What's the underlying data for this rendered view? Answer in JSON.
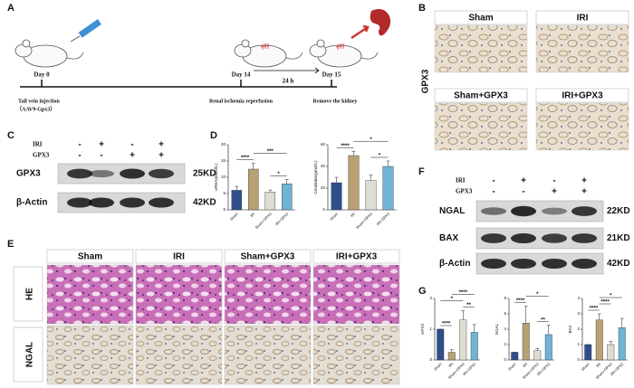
{
  "panel_labels": [
    "A",
    "B",
    "C",
    "D",
    "E",
    "F",
    "G"
  ],
  "timeline": {
    "day0": "Day 0",
    "day14": "Day 14",
    "day15": "Day 15",
    "gap": "24 h",
    "step0": "Tail vein injection",
    "step0_note": "（AAV9-Gpx3）",
    "step14": "Renal ischemia reperfusion",
    "step15": "Remove the kidney"
  },
  "ihc_b": {
    "stain": "GPX3",
    "groups": [
      "Sham",
      "IRI",
      "Sham+GPX3",
      "IRI+GPX3"
    ]
  },
  "blot_c": {
    "conditions": [
      {
        "name": "IRI",
        "signs": [
          "-",
          "+",
          "-",
          "+"
        ]
      },
      {
        "name": "GPX3",
        "signs": [
          "-",
          "-",
          "+",
          "+"
        ]
      }
    ],
    "bands": [
      {
        "name": "GPX3",
        "size": "25KD"
      },
      {
        "name": "β-Actin",
        "size": "42KD"
      }
    ]
  },
  "histology_e": {
    "groups": [
      "Sham",
      "IRI",
      "Sham+GPX3",
      "IRI+GPX3"
    ],
    "stains": [
      "HE",
      "NGAL"
    ]
  },
  "blot_f": {
    "conditions": [
      {
        "name": "IRI",
        "signs": [
          "-",
          "+",
          "-",
          "+"
        ]
      },
      {
        "name": "GPX3",
        "signs": [
          "-",
          "-",
          "+",
          "+"
        ]
      }
    ],
    "bands": [
      {
        "name": "NGAL",
        "size": "22KD"
      },
      {
        "name": "BAX",
        "size": "21KD"
      },
      {
        "name": "β-Actin",
        "size": "42KD"
      }
    ]
  },
  "chart_data": [
    {
      "type": "bar",
      "ylabel": "UREA(mmol/L)",
      "categories": [
        "Sham",
        "IRI",
        "Sham+GPX3",
        "IRI+GPX3"
      ],
      "values": [
        6,
        12.5,
        5.5,
        8
      ],
      "errors": [
        1.2,
        1.8,
        0.6,
        1.3
      ],
      "colors": [
        "#2f4e8c",
        "#b8a173",
        "#deddd3",
        "#6fb4d4"
      ],
      "ylim": [
        0,
        20
      ],
      "yticks": [
        0,
        5,
        10,
        15,
        20
      ],
      "brackets": [
        {
          "label": "****",
          "from": "Sham",
          "to": "IRI"
        },
        {
          "label": "*",
          "from": "Sham+GPX3",
          "to": "IRI+GPX3"
        },
        {
          "label": "***",
          "from": "IRI",
          "to": "IRI+GPX3"
        }
      ]
    },
    {
      "type": "bar",
      "ylabel": "Creatinine(μmol/L)",
      "categories": [
        "Sham",
        "IRI",
        "Sham+GPX3",
        "IRI+GPX3"
      ],
      "values": [
        25,
        50,
        27,
        40
      ],
      "errors": [
        5,
        4,
        5,
        5
      ],
      "colors": [
        "#2f4e8c",
        "#b8a173",
        "#deddd3",
        "#6fb4d4"
      ],
      "ylim": [
        0,
        60
      ],
      "yticks": [
        0,
        20,
        40,
        60
      ],
      "brackets": [
        {
          "label": "****",
          "from": "Sham",
          "to": "IRI"
        },
        {
          "label": "*",
          "from": "Sham+GPX3",
          "to": "IRI+GPX3"
        },
        {
          "label": "*",
          "from": "IRI",
          "to": "IRI+GPX3"
        }
      ]
    },
    {
      "type": "bar",
      "ylabel": "GPX3",
      "categories": [
        "Sham",
        "IRI",
        "Sham+GPX3",
        "IRI+GPX3"
      ],
      "values": [
        1.0,
        0.25,
        1.3,
        0.9
      ],
      "errors": [
        0,
        0.08,
        0.3,
        0.25
      ],
      "colors": [
        "#2f4e8c",
        "#b8a173",
        "#deddd3",
        "#6fb4d4"
      ],
      "ylim": [
        0,
        2
      ],
      "yticks": [
        0,
        1,
        2
      ],
      "brackets": [
        {
          "label": "****",
          "from": "Sham",
          "to": "IRI"
        },
        {
          "label": "**",
          "from": "Sham+GPX3",
          "to": "IRI+GPX3"
        },
        {
          "label": "*",
          "from": "Sham",
          "to": "Sham+GPX3"
        },
        {
          "label": "****",
          "from": "IRI",
          "to": "IRI+GPX3"
        }
      ]
    },
    {
      "type": "bar",
      "ylabel": "NGAL",
      "categories": [
        "Sham",
        "IRI",
        "Sham+GPX3",
        "IRI+GPX3"
      ],
      "values": [
        1,
        4.8,
        1.2,
        3.3
      ],
      "errors": [
        0,
        2.2,
        0.3,
        1.2
      ],
      "colors": [
        "#2f4e8c",
        "#b8a173",
        "#deddd3",
        "#6fb4d4"
      ],
      "ylim": [
        0,
        8
      ],
      "yticks": [
        0,
        2,
        4,
        6,
        8
      ],
      "brackets": [
        {
          "label": "****",
          "from": "Sham",
          "to": "IRI"
        },
        {
          "label": "**",
          "from": "Sham+GPX3",
          "to": "IRI+GPX3"
        },
        {
          "label": "*",
          "from": "IRI",
          "to": "IRI+GPX3"
        }
      ]
    },
    {
      "type": "bar",
      "ylabel": "BAX",
      "categories": [
        "Sham",
        "IRI",
        "Sham+GPX3",
        "IRI+GPX3"
      ],
      "values": [
        1,
        2.6,
        1,
        2.1
      ],
      "errors": [
        0,
        0.4,
        0.2,
        0.6
      ],
      "colors": [
        "#2f4e8c",
        "#b8a173",
        "#deddd3",
        "#6fb4d4"
      ],
      "ylim": [
        0,
        4
      ],
      "yticks": [
        0,
        1,
        2,
        3,
        4
      ],
      "brackets": [
        {
          "label": "****",
          "from": "Sham",
          "to": "IRI"
        },
        {
          "label": "****",
          "from": "IRI",
          "to": "Sham+GPX3"
        },
        {
          "label": "*",
          "from": "IRI",
          "to": "IRI+GPX3"
        }
      ]
    }
  ]
}
